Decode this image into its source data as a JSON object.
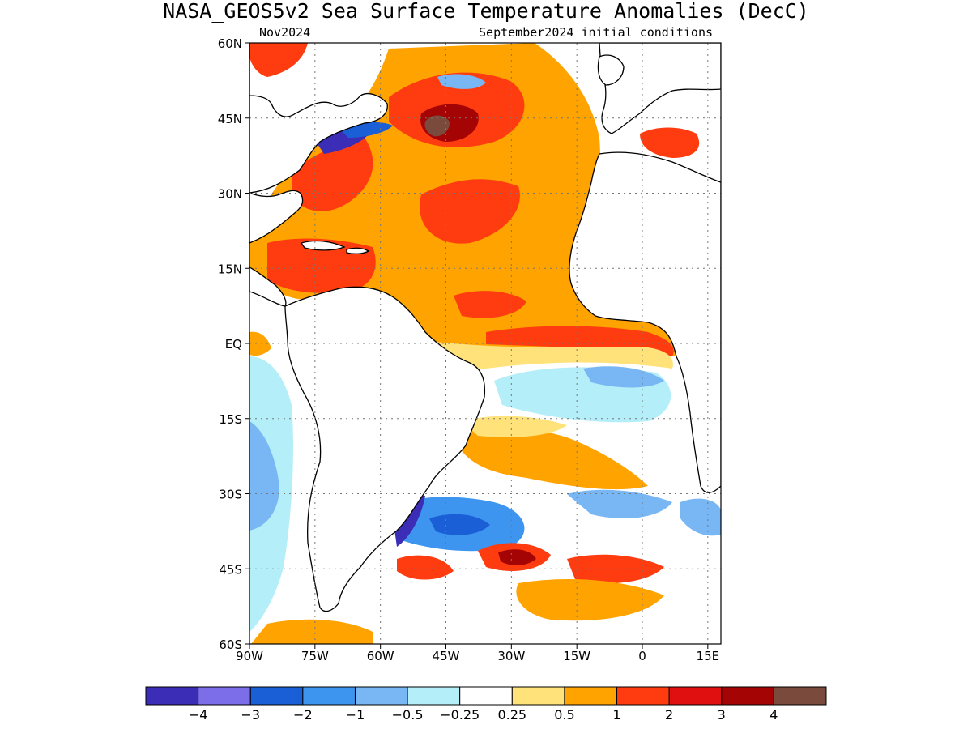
{
  "title": "NASA_GEOS5v2 Sea Surface Temperature Anomalies (DecC)",
  "valid_month": "Nov2024",
  "init_label": "September2024 initial conditions",
  "map": {
    "lon_range": [
      -90,
      18
    ],
    "lat_range": [
      -60,
      60
    ],
    "lon_ticks": [
      {
        "value": -90,
        "label": "90W"
      },
      {
        "value": -75,
        "label": "75W"
      },
      {
        "value": -60,
        "label": "60W"
      },
      {
        "value": -45,
        "label": "45W"
      },
      {
        "value": -30,
        "label": "30W"
      },
      {
        "value": -15,
        "label": "15W"
      },
      {
        "value": 0,
        "label": "0"
      },
      {
        "value": 15,
        "label": "15E"
      }
    ],
    "lat_ticks": [
      {
        "value": 60,
        "label": "60N"
      },
      {
        "value": 45,
        "label": "45N"
      },
      {
        "value": 30,
        "label": "30N"
      },
      {
        "value": 15,
        "label": "15N"
      },
      {
        "value": 0,
        "label": "EQ"
      },
      {
        "value": -15,
        "label": "15S"
      },
      {
        "value": -30,
        "label": "30S"
      },
      {
        "value": -45,
        "label": "45S"
      },
      {
        "value": -60,
        "label": "60S"
      }
    ],
    "grid": true,
    "land_color": "#ffffff"
  },
  "colorbar": {
    "colors": [
      "#3b2db5",
      "#7c6ee8",
      "#1a5fd6",
      "#3d95f0",
      "#78b6f4",
      "#b4eef8",
      "#ffffff",
      "#ffe27a",
      "#ffa300",
      "#ff3c10",
      "#e01010",
      "#a50404",
      "#7a4a3c"
    ],
    "labels": [
      "−4",
      "−3",
      "−2",
      "−1",
      "−0.5",
      "−0.25",
      "0.25",
      "0.5",
      "1",
      "2",
      "3",
      "4"
    ]
  }
}
